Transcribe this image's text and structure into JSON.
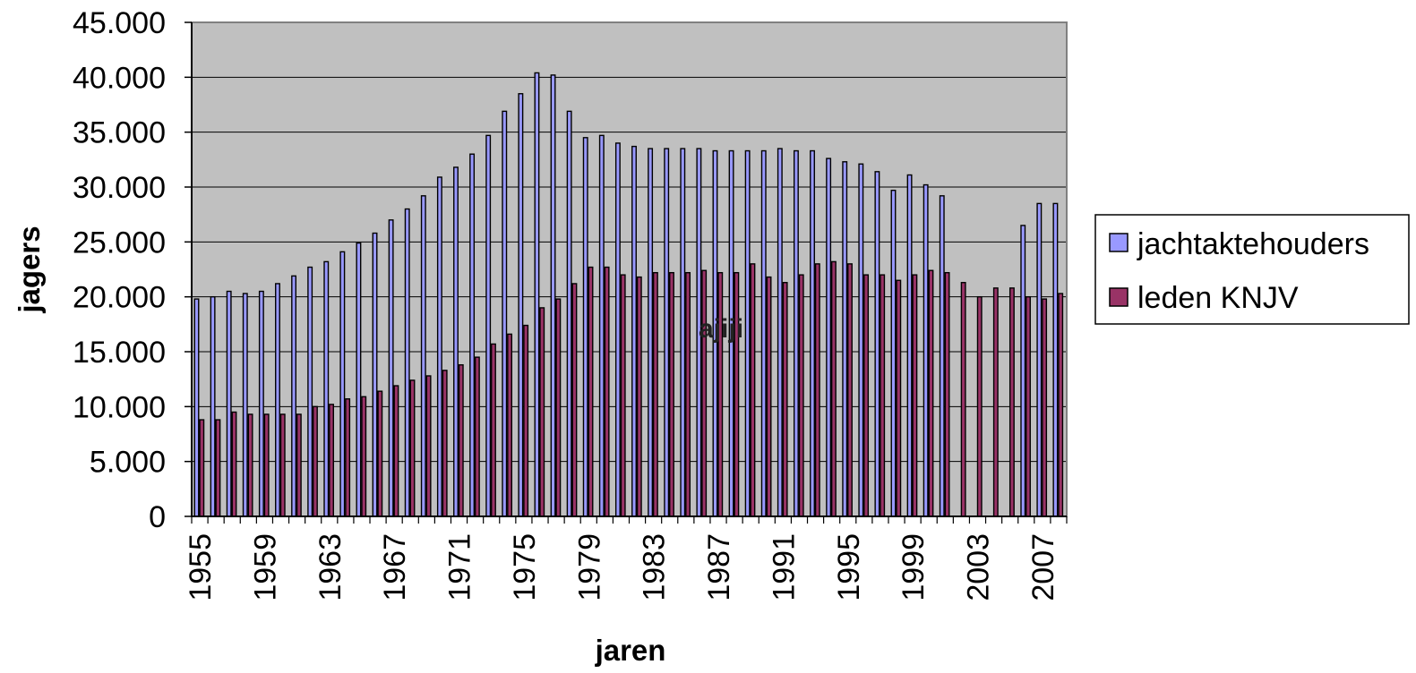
{
  "colors": {
    "plot_background": "#c0c0c0",
    "jachtaktehouders": "#9999ff",
    "leden_knjv": "#993366",
    "bar_outline": "#000000",
    "gridline": "#000000"
  },
  "chart_data": {
    "type": "bar",
    "title": "",
    "xlabel": "jaren",
    "ylabel": "jagers",
    "ylim": [
      0,
      45000
    ],
    "yticks": [
      "0",
      "5.000",
      "10.000",
      "15.000",
      "20.000",
      "25.000",
      "30.000",
      "35.000",
      "40.000",
      "45.000"
    ],
    "grid": true,
    "legend_position": "right",
    "categories": [
      "1955",
      "1956",
      "1957",
      "1958",
      "1959",
      "1960",
      "1961",
      "1962",
      "1963",
      "1964",
      "1965",
      "1966",
      "1967",
      "1968",
      "1969",
      "1970",
      "1971",
      "1972",
      "1973",
      "1974",
      "1975",
      "1976",
      "1977",
      "1978",
      "1979",
      "1980",
      "1981",
      "1982",
      "1983",
      "1984",
      "1985",
      "1986",
      "1987",
      "1988",
      "1989",
      "1990",
      "1991",
      "1992",
      "1993",
      "1994",
      "1995",
      "1996",
      "1997",
      "1998",
      "1999",
      "2000",
      "2001",
      "2002",
      "2003",
      "2004",
      "2005",
      "2006",
      "2007",
      "2008"
    ],
    "xtick_labels": [
      "1955",
      "1959",
      "1963",
      "1967",
      "1971",
      "1975",
      "1979",
      "1983",
      "1987",
      "1991",
      "1995",
      "1999",
      "2003",
      "2007"
    ],
    "series": [
      {
        "name": "jachtaktehouders",
        "values": [
          19800,
          20000,
          20500,
          20300,
          20500,
          21200,
          21900,
          22700,
          23200,
          24100,
          24900,
          25800,
          27000,
          28000,
          29200,
          30900,
          31800,
          33000,
          34700,
          36900,
          38500,
          40400,
          40200,
          36900,
          34500,
          34700,
          34000,
          33700,
          33500,
          33500,
          33500,
          33500,
          33300,
          33300,
          33300,
          33300,
          33500,
          33300,
          33300,
          32600,
          32300,
          32100,
          31400,
          29700,
          31100,
          30200,
          29200,
          null,
          null,
          null,
          null,
          26500,
          28500,
          28500
        ]
      },
      {
        "name": "leden KNJV",
        "values": [
          8800,
          8800,
          9500,
          9300,
          9300,
          9300,
          9300,
          10000,
          10200,
          10700,
          10900,
          11400,
          11900,
          12400,
          12800,
          13300,
          13800,
          14500,
          15700,
          16600,
          17400,
          19000,
          19800,
          21200,
          22700,
          22700,
          22000,
          21800,
          22200,
          22200,
          22200,
          22400,
          22200,
          22200,
          23000,
          21800,
          21300,
          22000,
          23000,
          23200,
          23000,
          22000,
          22000,
          21500,
          22000,
          22400,
          22200,
          21300,
          20000,
          20800,
          20800,
          20000,
          19800,
          20300
        ]
      }
    ],
    "annotations": [
      "ajiji"
    ]
  }
}
